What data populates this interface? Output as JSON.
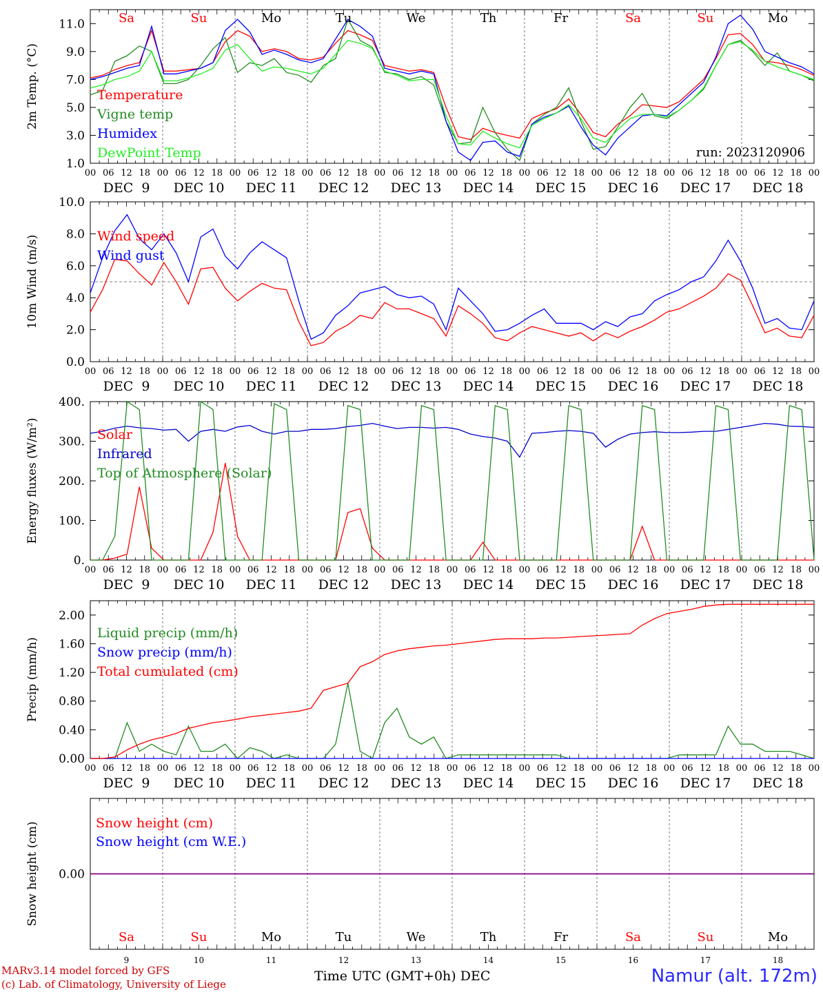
{
  "days": [
    "Sa",
    "Su",
    "Mo",
    "Tu",
    "We",
    "Th",
    "Fr",
    "Sa",
    "Su",
    "Mo"
  ],
  "weekend_flags": [
    true,
    true,
    false,
    false,
    false,
    false,
    false,
    true,
    true,
    false
  ],
  "date_labels": [
    "DEC  9",
    "DEC 10",
    "DEC 11",
    "DEC 12",
    "DEC 13",
    "DEC 14",
    "DEC 15",
    "DEC 16",
    "DEC 17",
    "DEC 18"
  ],
  "day_numbers": [
    "9",
    "10",
    "11",
    "12",
    "13",
    "14",
    "15",
    "16",
    "17",
    "18"
  ],
  "hour_ticks": [
    "00",
    "06",
    "12",
    "18"
  ],
  "run_label": "run: 2023120906",
  "footer": {
    "model": "MARv3.14 model forced by GFS",
    "lab": "(c) Lab. of Climatology, University of Liege",
    "xlabel": "Time UTC (GMT+0h) DEC",
    "station": "Namur (alt. 172m)"
  },
  "colors": {
    "red": "#ff0000",
    "darkgreen": "#228b22",
    "blue": "#0000ff",
    "lightgreen": "#22ee22",
    "purple": "#800080"
  },
  "chart_data": [
    {
      "type": "line",
      "ylabel": "2m Temp. (°C)",
      "ylim": [
        1.0,
        12.0
      ],
      "yticks": [
        "1.0",
        "3.0",
        "5.0",
        "7.0",
        "9.0",
        "11.0"
      ],
      "x_hours_step": 6,
      "legend": [
        "Temperature",
        "Vigne temp",
        "Humidex",
        "DewPoint Temp"
      ],
      "series": [
        {
          "name": "Temperature",
          "color": "#ff0000",
          "values": [
            7.1,
            7.3,
            7.7,
            8.0,
            8.2,
            10.5,
            7.6,
            7.6,
            7.7,
            7.8,
            8.2,
            9.7,
            10.5,
            10.1,
            9.0,
            9.2,
            9.0,
            8.5,
            8.4,
            8.6,
            9.6,
            10.5,
            10.2,
            9.8,
            8.0,
            7.8,
            7.6,
            7.7,
            7.5,
            5.0,
            2.9,
            2.7,
            3.5,
            3.2,
            3.0,
            2.8,
            4.2,
            4.6,
            4.9,
            5.6,
            4.5,
            3.2,
            2.9,
            3.8,
            4.4,
            5.2,
            5.1,
            5.0,
            5.4,
            6.2,
            7.0,
            8.5,
            10.2,
            10.3,
            9.5,
            8.3,
            8.2,
            8.0,
            7.7,
            7.3
          ]
        },
        {
          "name": "Vigne temp",
          "color": "#228b22",
          "values": [
            5.9,
            6.2,
            8.3,
            8.7,
            9.4,
            9.0,
            6.7,
            6.7,
            7.0,
            8.0,
            9.2,
            10.0,
            7.5,
            8.2,
            8.0,
            8.5,
            7.5,
            7.3,
            6.8,
            8.0,
            8.5,
            11.3,
            9.8,
            9.3,
            7.5,
            7.4,
            7.0,
            7.2,
            6.6,
            4.0,
            2.4,
            2.5,
            5.0,
            3.2,
            2.0,
            1.2,
            3.8,
            4.5,
            5.0,
            6.4,
            4.0,
            2.0,
            2.2,
            3.6,
            5.0,
            6.0,
            4.4,
            4.2,
            4.8,
            5.5,
            6.3,
            8.0,
            9.5,
            9.8,
            9.0,
            8.0,
            8.9,
            7.6,
            7.3,
            6.9
          ]
        },
        {
          "name": "Humidex",
          "color": "#0000ff",
          "values": [
            7.0,
            7.2,
            7.5,
            7.8,
            8.0,
            10.8,
            7.4,
            7.4,
            7.6,
            7.8,
            8.2,
            10.5,
            11.3,
            10.4,
            8.8,
            9.1,
            8.8,
            8.4,
            8.2,
            8.5,
            9.9,
            11.3,
            10.8,
            10.1,
            7.8,
            7.6,
            7.4,
            7.6,
            7.4,
            4.0,
            1.8,
            1.2,
            2.5,
            2.6,
            1.8,
            1.5,
            3.8,
            4.3,
            4.6,
            5.1,
            3.6,
            2.3,
            1.6,
            2.8,
            3.6,
            4.4,
            4.5,
            4.4,
            5.2,
            6.0,
            6.8,
            8.6,
            11.0,
            11.6,
            10.6,
            9.0,
            8.6,
            8.2,
            7.9,
            7.4
          ]
        },
        {
          "name": "DewPoint Temp",
          "color": "#22ee22",
          "values": [
            6.4,
            6.6,
            7.0,
            7.2,
            7.6,
            9.0,
            6.9,
            6.9,
            7.1,
            7.4,
            7.8,
            9.1,
            9.5,
            8.5,
            7.6,
            7.9,
            7.8,
            7.6,
            7.4,
            7.8,
            8.8,
            9.8,
            9.6,
            9.2,
            7.6,
            7.3,
            6.9,
            7.0,
            7.0,
            4.4,
            2.4,
            2.3,
            3.3,
            2.8,
            2.4,
            2.1,
            3.7,
            4.2,
            4.6,
            5.2,
            4.2,
            2.8,
            2.5,
            3.4,
            4.2,
            4.5,
            4.5,
            4.3,
            4.8,
            5.5,
            6.4,
            8.0,
            9.5,
            9.7,
            9.1,
            8.3,
            7.9,
            7.6,
            7.3,
            7.0
          ]
        }
      ]
    },
    {
      "type": "line",
      "ylabel": "10m Wind (m/s)",
      "ylim": [
        0.0,
        10.0
      ],
      "yticks": [
        "0.0",
        "2.0",
        "4.0",
        "6.0",
        "8.0",
        "10.0"
      ],
      "reference_line": 5.0,
      "legend": [
        "Wind speed",
        "Wind gust"
      ],
      "series": [
        {
          "name": "Wind speed",
          "color": "#ff0000",
          "values": [
            3.1,
            4.5,
            6.4,
            6.3,
            5.5,
            4.8,
            6.2,
            5.0,
            3.6,
            5.8,
            5.9,
            4.6,
            3.8,
            4.4,
            4.9,
            4.6,
            4.5,
            2.5,
            1.0,
            1.2,
            1.9,
            2.3,
            2.9,
            2.7,
            3.7,
            3.3,
            3.3,
            3.0,
            2.7,
            1.6,
            3.5,
            3.0,
            2.4,
            1.5,
            1.3,
            1.8,
            2.2,
            2.0,
            1.8,
            1.6,
            1.8,
            1.3,
            1.8,
            1.5,
            1.9,
            2.2,
            2.6,
            3.1,
            3.3,
            3.7,
            4.1,
            4.6,
            5.5,
            5.1,
            3.5,
            1.8,
            2.1,
            1.6,
            1.5,
            2.9
          ]
        },
        {
          "name": "Wind gust",
          "color": "#0000ff",
          "values": [
            4.3,
            6.5,
            8.2,
            9.2,
            7.7,
            7.0,
            8.0,
            6.8,
            5.0,
            7.8,
            8.3,
            6.6,
            5.8,
            6.8,
            7.5,
            7.0,
            6.5,
            3.8,
            1.4,
            1.8,
            2.9,
            3.5,
            4.3,
            4.5,
            4.7,
            4.2,
            4.0,
            4.1,
            3.6,
            2.0,
            4.6,
            3.8,
            3.0,
            1.9,
            2.0,
            2.4,
            2.9,
            3.3,
            2.4,
            2.4,
            2.4,
            2.0,
            2.5,
            2.2,
            2.8,
            3.0,
            3.8,
            4.2,
            4.5,
            5.0,
            5.3,
            6.3,
            7.6,
            6.3,
            4.6,
            2.4,
            2.7,
            2.1,
            2.0,
            3.8
          ]
        }
      ]
    },
    {
      "type": "line",
      "ylabel": "Energy fluxes (W/m²)",
      "ylim": [
        0,
        400
      ],
      "yticks": [
        "0.",
        "100.",
        "200.",
        "300.",
        "400."
      ],
      "legend": [
        "Solar",
        "Infrared",
        "Top of Atmosphere (Solar)"
      ],
      "series": [
        {
          "name": "Solar",
          "color": "#ff0000",
          "values": [
            0,
            0,
            5,
            15,
            185,
            30,
            0,
            0,
            0,
            0,
            70,
            245,
            60,
            0,
            0,
            0,
            0,
            0,
            0,
            0,
            0,
            120,
            130,
            30,
            0,
            0,
            0,
            0,
            0,
            0,
            0,
            0,
            45,
            0,
            0,
            0,
            0,
            0,
            0,
            0,
            0,
            0,
            0,
            0,
            0,
            85,
            0,
            0,
            0,
            0,
            0,
            0,
            0,
            0,
            0,
            0,
            0,
            0,
            0,
            0
          ]
        },
        {
          "name": "Infrared",
          "color": "#0000cc",
          "values": [
            320,
            325,
            333,
            338,
            334,
            332,
            328,
            330,
            300,
            325,
            330,
            325,
            336,
            340,
            325,
            318,
            325,
            325,
            330,
            330,
            332,
            337,
            340,
            345,
            338,
            332,
            335,
            335,
            333,
            335,
            330,
            318,
            312,
            308,
            300,
            260,
            320,
            322,
            325,
            327,
            325,
            320,
            285,
            305,
            318,
            322,
            324,
            322,
            322,
            323,
            325,
            325,
            330,
            335,
            340,
            345,
            343,
            338,
            337,
            335
          ]
        },
        {
          "name": "Top of Atmosphere (Solar)",
          "color": "#228b22",
          "values": [
            0,
            0,
            60,
            400,
            380,
            0,
            0,
            0,
            0,
            400,
            380,
            0,
            0,
            0,
            0,
            395,
            380,
            0,
            0,
            0,
            0,
            390,
            380,
            0,
            0,
            0,
            0,
            390,
            380,
            0,
            0,
            0,
            0,
            390,
            380,
            0,
            0,
            0,
            0,
            390,
            380,
            0,
            0,
            0,
            0,
            390,
            380,
            0,
            0,
            0,
            0,
            390,
            380,
            0,
            0,
            0,
            0,
            390,
            380,
            0
          ]
        }
      ]
    },
    {
      "type": "line",
      "ylabel": "Precip (mm/h)",
      "ylim": [
        0.0,
        2.2
      ],
      "yticks": [
        "0.00",
        "0.40",
        "0.80",
        "1.20",
        "1.60",
        "2.00"
      ],
      "legend": [
        "Liquid precip (mm/h)",
        "Snow precip (mm/h)",
        "Total cumulated (cm)"
      ],
      "series": [
        {
          "name": "Liquid precip (mm/h)",
          "color": "#228b22",
          "values": [
            0,
            0,
            0,
            0.5,
            0.1,
            0.2,
            0.1,
            0.05,
            0.45,
            0.1,
            0.1,
            0.2,
            0,
            0.15,
            0.1,
            0,
            0.05,
            0,
            0,
            0,
            0.2,
            1.05,
            0.1,
            0,
            0.5,
            0.7,
            0.3,
            0.2,
            0.3,
            0,
            0.05,
            0.05,
            0.05,
            0.05,
            0.05,
            0.05,
            0.05,
            0.05,
            0.05,
            0,
            0,
            0,
            0,
            0,
            0,
            0,
            0,
            0,
            0.05,
            0.05,
            0.05,
            0.05,
            0.45,
            0.2,
            0.2,
            0.1,
            0.1,
            0.1,
            0.05,
            0
          ]
        },
        {
          "name": "Snow precip (mm/h)",
          "color": "#0000ff",
          "values": [
            0,
            0,
            0,
            0,
            0,
            0,
            0,
            0,
            0,
            0,
            0,
            0,
            0,
            0,
            0,
            0,
            0,
            0,
            0,
            0,
            0,
            0,
            0,
            0,
            0,
            0,
            0,
            0,
            0,
            0,
            0,
            0,
            0,
            0,
            0,
            0,
            0,
            0,
            0,
            0,
            0,
            0,
            0,
            0,
            0,
            0,
            0,
            0,
            0,
            0,
            0,
            0,
            0,
            0,
            0,
            0,
            0,
            0,
            0,
            0
          ]
        },
        {
          "name": "Total cumulated (cm)",
          "color": "#ff0000",
          "values": [
            0,
            0,
            0.02,
            0.12,
            0.2,
            0.26,
            0.3,
            0.35,
            0.42,
            0.46,
            0.5,
            0.52,
            0.55,
            0.58,
            0.6,
            0.62,
            0.64,
            0.66,
            0.7,
            0.95,
            1.0,
            1.05,
            1.28,
            1.35,
            1.45,
            1.5,
            1.53,
            1.55,
            1.57,
            1.58,
            1.6,
            1.62,
            1.64,
            1.66,
            1.67,
            1.67,
            1.67,
            1.68,
            1.68,
            1.69,
            1.7,
            1.71,
            1.72,
            1.73,
            1.74,
            1.86,
            1.95,
            2.02,
            2.05,
            2.08,
            2.12,
            2.14,
            2.15,
            2.15,
            2.15,
            2.15,
            2.15,
            2.15,
            2.15,
            2.15
          ]
        }
      ]
    },
    {
      "type": "line",
      "ylabel": "Snow height (cm)",
      "ylim": [
        -1.0,
        1.0
      ],
      "yticks": [
        "0.00"
      ],
      "legend": [
        "Snow height (cm)",
        "Snow height (cm W.E.)"
      ],
      "series": [
        {
          "name": "Snow height (cm)",
          "color": "#ff0000",
          "values": [
            0,
            0
          ]
        },
        {
          "name": "Snow height (cm W.E.)",
          "color": "#0000ff",
          "values": [
            0,
            0
          ]
        }
      ]
    }
  ]
}
